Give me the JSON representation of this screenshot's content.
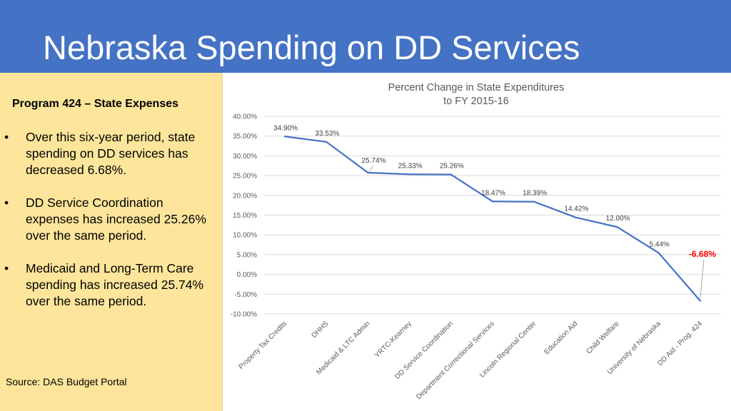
{
  "slide": {
    "title": "Nebraska Spending on DD Services",
    "subtitle": "Program 424 – State Expenses",
    "bullets": [
      "Over this six-year period, state spending on DD services has decreased 6.68%.",
      "DD Service Coordination expenses has increased 25.26% over the same period.",
      "Medicaid and Long-Term Care spending has increased 25.74% over the same period."
    ],
    "bullet_symbol": "•",
    "source": "Source: DAS Budget Portal"
  },
  "colors": {
    "header_bg": "#4472c4",
    "sidebar_bg": "#fde69b",
    "series": "#4472c4",
    "highlight": "#ff0000"
  },
  "chart_data": {
    "type": "line",
    "title": "Percent Change in State Expenditures",
    "subtitle": "to FY 2015-16",
    "categories": [
      "Property Tax Credits",
      "DHHS",
      "Medicaid & LTC Admin",
      "YRTC-Kearney",
      "DD Service Coordination",
      "Department Correctional Services",
      "Lincoln Regional Center",
      "Education Aid",
      "Child Welfare",
      "University of Nebraska",
      "DD Aid - Prog. 424"
    ],
    "values": [
      34.9,
      33.53,
      25.74,
      25.33,
      25.26,
      18.47,
      18.39,
      14.42,
      12.0,
      5.44,
      -6.68
    ],
    "data_labels": [
      "34.90%",
      "33.53%",
      "25.74%",
      "25.33%",
      "25.26%",
      "18.47%",
      "18.39%",
      "14.42%",
      "12.00%",
      "5.44%",
      "-6.68%"
    ],
    "highlight_index": 10,
    "ylim": [
      -10,
      40
    ],
    "y_ticks": [
      40,
      35,
      30,
      25,
      20,
      15,
      10,
      5,
      0,
      -5,
      -10
    ],
    "y_tick_labels": [
      "40.00%",
      "35.00%",
      "30.00%",
      "25.00%",
      "20.00%",
      "15.00%",
      "10.00%",
      "5.00%",
      "0.00%",
      "-5.00%",
      "-10.00%"
    ],
    "xlabel": "",
    "ylabel": "",
    "grid": true,
    "legend": "none"
  }
}
